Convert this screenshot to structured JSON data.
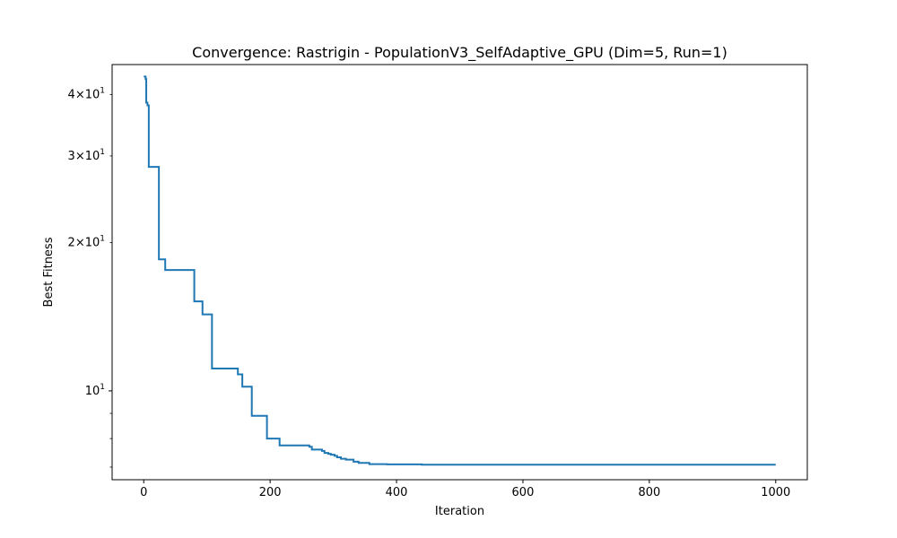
{
  "chart_data": {
    "type": "line",
    "title": "Convergence: Rastrigin - PopulationV3_SelfAdaptive_GPU (Dim=5, Run=1)",
    "xlabel": "Iteration",
    "ylabel": "Best Fitness",
    "xlim": [
      -50,
      1050
    ],
    "ylim": [
      6.6,
      46
    ],
    "yscale": "log",
    "grid": false,
    "line_color": "#1f77b4",
    "x_ticks": [
      {
        "value": 0,
        "label": "0"
      },
      {
        "value": 200,
        "label": "200"
      },
      {
        "value": 400,
        "label": "400"
      },
      {
        "value": 600,
        "label": "600"
      },
      {
        "value": 800,
        "label": "800"
      },
      {
        "value": 1000,
        "label": "1000"
      }
    ],
    "y_major_ticks": [
      {
        "value": 10,
        "base": "10",
        "exp": "1"
      }
    ],
    "y_minor_ticks": [
      {
        "value": 20,
        "coef": "2",
        "base": "10",
        "exp": "1"
      },
      {
        "value": 30,
        "coef": "3",
        "base": "10",
        "exp": "1"
      },
      {
        "value": 40,
        "coef": "4",
        "base": "10",
        "exp": "1"
      },
      {
        "value": 7,
        "coef": "",
        "base": "",
        "exp": ""
      },
      {
        "value": 8,
        "coef": "",
        "base": "",
        "exp": ""
      },
      {
        "value": 9,
        "coef": "",
        "base": "",
        "exp": ""
      }
    ],
    "series": [
      {
        "step": "post",
        "x": [
          0,
          3,
          4,
          6,
          8,
          22,
          24,
          34,
          79,
          80,
          92,
          93,
          107,
          108,
          148,
          149,
          155,
          156,
          170,
          171,
          194,
          195,
          214,
          215,
          260,
          262,
          265,
          266,
          280,
          282,
          285,
          286,
          290,
          292,
          295,
          296,
          300,
          302,
          305,
          306,
          310,
          312,
          318,
          320,
          330,
          332,
          338,
          340,
          355,
          357,
          380,
          385,
          410,
          440,
          1000
        ],
        "y": [
          43.5,
          43,
          38.5,
          38,
          28.5,
          28.5,
          18.5,
          17.6,
          17.6,
          15.2,
          15.2,
          14.3,
          14.3,
          11.1,
          11.1,
          10.8,
          10.8,
          10.2,
          10.2,
          8.9,
          8.9,
          8.0,
          8.0,
          7.75,
          7.75,
          7.7,
          7.7,
          7.6,
          7.6,
          7.55,
          7.55,
          7.48,
          7.48,
          7.45,
          7.45,
          7.42,
          7.42,
          7.38,
          7.38,
          7.33,
          7.33,
          7.28,
          7.28,
          7.25,
          7.25,
          7.18,
          7.18,
          7.14,
          7.14,
          7.1,
          7.1,
          7.09,
          7.09,
          7.08,
          7.08
        ]
      }
    ]
  }
}
